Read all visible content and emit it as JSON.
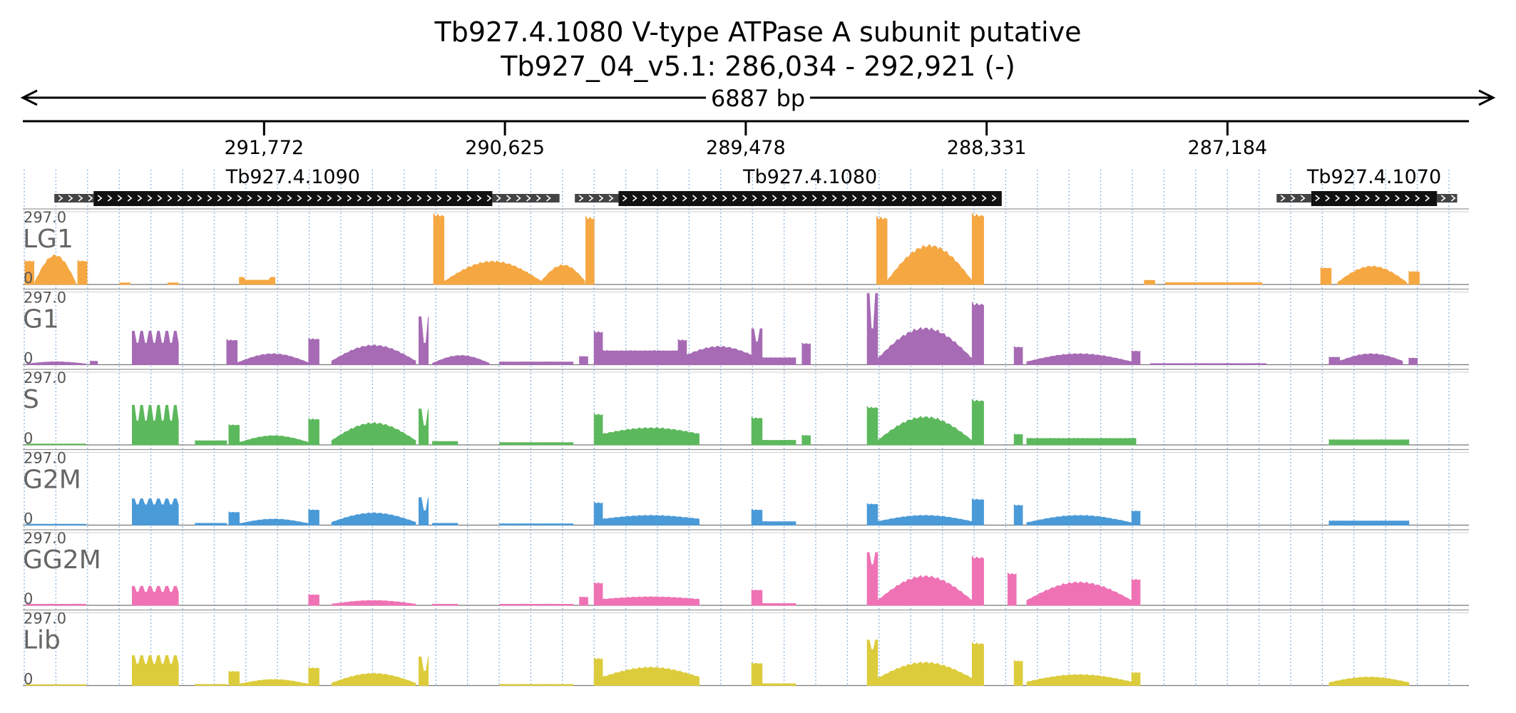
{
  "title": {
    "line1": "Tb927.4.1080  V-type ATPase  A subunit  putative",
    "line2": "Tb927_04_v5.1: 286,034 - 292,921 (-)"
  },
  "ruler": {
    "span_label": "6887 bp",
    "ticks": [
      "291,772",
      "290,625",
      "289,478",
      "288,331",
      "287,184"
    ]
  },
  "colors": {
    "LG1": "#f5a742",
    "G1": "#a66bb4",
    "S": "#5cb85c",
    "G2M": "#4a9ad8",
    "GG2M": "#ef72b5",
    "Lib": "#dccc3c",
    "gene": "#111111",
    "utr": "#444444",
    "grid": "#8fb6df"
  },
  "chart_data": {
    "type": "area",
    "title": "Tb927.4.1080  V-type ATPase  A subunit  putative",
    "subtitle": "Tb927_04_v5.1: 286,034 - 292,921 (-)",
    "x_axis": {
      "range": [
        292921,
        286034
      ],
      "direction": "reverse strand (-)",
      "tick_values": [
        291772,
        290625,
        289478,
        288331,
        287184
      ],
      "tick_labels": [
        "291,772",
        "290,625",
        "289,478",
        "288,331",
        "287,184"
      ]
    },
    "y_range": [
      0,
      297.0
    ],
    "genes": [
      {
        "name": "Tb927.4.1090",
        "utr5": [
          292771,
          292584
        ],
        "cds": [
          292584,
          290685
        ],
        "utr3": [
          290685,
          290365
        ]
      },
      {
        "name": "Tb927.4.1080",
        "utr5": [
          290292,
          290084
        ],
        "cds": [
          290084,
          288259
        ],
        "utr3": []
      },
      {
        "name": "Tb927.4.1070",
        "utr5": [
          286950,
          286785
        ],
        "cds": [
          286785,
          286186
        ],
        "utr3": [
          286186,
          286090
        ]
      }
    ],
    "tracks": [
      {
        "name": "LG1",
        "ymax": 297.0,
        "segments": [
          {
            "from": 292911,
            "to": 292868,
            "shape": "flat",
            "peak": 100
          },
          {
            "from": 292864,
            "to": 292670,
            "shape": "hump",
            "peak": 120,
            "base": 10
          },
          {
            "from": 292660,
            "to": 292615,
            "shape": "flat",
            "peak": 100
          },
          {
            "from": 292460,
            "to": 292410,
            "shape": "flat",
            "peak": 7
          },
          {
            "from": 292230,
            "to": 292180,
            "shape": "flat",
            "peak": 7
          },
          {
            "from": 291890,
            "to": 291720,
            "shape": "edge",
            "peak": 30,
            "base": 18
          },
          {
            "from": 290965,
            "to": 290915,
            "shape": "flat",
            "peak": 297
          },
          {
            "from": 290915,
            "to": 290450,
            "shape": "hump",
            "peak": 95,
            "base": 12
          },
          {
            "from": 290450,
            "to": 290245,
            "shape": "hump",
            "peak": 80,
            "base": 15
          },
          {
            "from": 290240,
            "to": 290200,
            "shape": "flat",
            "peak": 285
          },
          {
            "from": 288855,
            "to": 288805,
            "shape": "flat",
            "peak": 285
          },
          {
            "from": 288805,
            "to": 288400,
            "shape": "hump",
            "peak": 160,
            "base": 15
          },
          {
            "from": 288400,
            "to": 288345,
            "shape": "flat",
            "peak": 297
          },
          {
            "from": 287580,
            "to": 287530,
            "shape": "flat",
            "peak": 18
          },
          {
            "from": 287480,
            "to": 287020,
            "shape": "flat",
            "peak": 8
          },
          {
            "from": 286740,
            "to": 286690,
            "shape": "flat",
            "peak": 70
          },
          {
            "from": 286660,
            "to": 286330,
            "shape": "hump",
            "peak": 75,
            "base": 8
          },
          {
            "from": 286320,
            "to": 286270,
            "shape": "flat",
            "peak": 55
          }
        ]
      },
      {
        "name": "G1",
        "ymax": 297.0,
        "segments": [
          {
            "from": 292905,
            "to": 292620,
            "shape": "hump",
            "peak": 12,
            "base": 3
          },
          {
            "from": 292600,
            "to": 292565,
            "shape": "flat",
            "peak": 15
          },
          {
            "from": 292400,
            "to": 292180,
            "shape": "steps",
            "peak": 140,
            "base": 90
          },
          {
            "from": 291950,
            "to": 291900,
            "shape": "flat",
            "peak": 105
          },
          {
            "from": 291900,
            "to": 291560,
            "shape": "hump",
            "peak": 45,
            "base": 8
          },
          {
            "from": 291560,
            "to": 291510,
            "shape": "flat",
            "peak": 110
          },
          {
            "from": 291450,
            "to": 291050,
            "shape": "hump",
            "peak": 80,
            "base": 15
          },
          {
            "from": 291035,
            "to": 290990,
            "shape": "steps",
            "peak": 200,
            "base": 90
          },
          {
            "from": 290970,
            "to": 290700,
            "shape": "hump",
            "peak": 38,
            "base": 6
          },
          {
            "from": 290650,
            "to": 290300,
            "shape": "flat",
            "peak": 12
          },
          {
            "from": 290270,
            "to": 290230,
            "shape": "flat",
            "peak": 35
          },
          {
            "from": 290200,
            "to": 290160,
            "shape": "flat",
            "peak": 140
          },
          {
            "from": 290160,
            "to": 289800,
            "shape": "flat",
            "peak": 60
          },
          {
            "from": 289800,
            "to": 289760,
            "shape": "flat",
            "peak": 105
          },
          {
            "from": 289760,
            "to": 289450,
            "shape": "hump",
            "peak": 75,
            "base": 40
          },
          {
            "from": 289450,
            "to": 289400,
            "shape": "steps",
            "peak": 150,
            "base": 95
          },
          {
            "from": 289400,
            "to": 289240,
            "shape": "flat",
            "peak": 30
          },
          {
            "from": 289210,
            "to": 289170,
            "shape": "flat",
            "peak": 90
          },
          {
            "from": 288900,
            "to": 288850,
            "shape": "steps",
            "peak": 297,
            "base": 150
          },
          {
            "from": 288850,
            "to": 288400,
            "shape": "hump",
            "peak": 150,
            "base": 25
          },
          {
            "from": 288400,
            "to": 288345,
            "shape": "flat",
            "peak": 260
          },
          {
            "from": 288200,
            "to": 288160,
            "shape": "flat",
            "peak": 75
          },
          {
            "from": 288140,
            "to": 287640,
            "shape": "hump",
            "peak": 45,
            "base": 12
          },
          {
            "from": 287640,
            "to": 287600,
            "shape": "flat",
            "peak": 58
          },
          {
            "from": 287550,
            "to": 287000,
            "shape": "flat",
            "peak": 5
          },
          {
            "from": 286700,
            "to": 286650,
            "shape": "flat",
            "peak": 32
          },
          {
            "from": 286650,
            "to": 286350,
            "shape": "hump",
            "peak": 45,
            "base": 15
          },
          {
            "from": 286320,
            "to": 286280,
            "shape": "flat",
            "peak": 28
          }
        ]
      },
      {
        "name": "S",
        "ymax": 297.0,
        "segments": [
          {
            "from": 292905,
            "to": 292620,
            "shape": "flat",
            "peak": 4
          },
          {
            "from": 292400,
            "to": 292180,
            "shape": "steps",
            "peak": 165,
            "base": 100
          },
          {
            "from": 292100,
            "to": 291950,
            "shape": "flat",
            "peak": 18
          },
          {
            "from": 291940,
            "to": 291890,
            "shape": "flat",
            "peak": 85
          },
          {
            "from": 291890,
            "to": 291560,
            "shape": "hump",
            "peak": 38,
            "base": 10
          },
          {
            "from": 291560,
            "to": 291510,
            "shape": "flat",
            "peak": 110
          },
          {
            "from": 291450,
            "to": 291050,
            "shape": "hump",
            "peak": 90,
            "base": 18
          },
          {
            "from": 291035,
            "to": 290990,
            "shape": "steps",
            "peak": 150,
            "base": 80
          },
          {
            "from": 290970,
            "to": 290850,
            "shape": "flat",
            "peak": 15
          },
          {
            "from": 290650,
            "to": 290300,
            "shape": "flat",
            "peak": 10
          },
          {
            "from": 290200,
            "to": 290160,
            "shape": "flat",
            "peak": 130
          },
          {
            "from": 290160,
            "to": 289700,
            "shape": "hump",
            "peak": 70,
            "base": 45
          },
          {
            "from": 289450,
            "to": 289400,
            "shape": "flat",
            "peak": 115
          },
          {
            "from": 289400,
            "to": 289240,
            "shape": "flat",
            "peak": 20
          },
          {
            "from": 289210,
            "to": 289170,
            "shape": "flat",
            "peak": 40
          },
          {
            "from": 288900,
            "to": 288850,
            "shape": "flat",
            "peak": 160
          },
          {
            "from": 288850,
            "to": 288400,
            "shape": "hump",
            "peak": 115,
            "base": 18
          },
          {
            "from": 288400,
            "to": 288345,
            "shape": "flat",
            "peak": 190
          },
          {
            "from": 288200,
            "to": 288160,
            "shape": "flat",
            "peak": 45
          },
          {
            "from": 288140,
            "to": 287620,
            "shape": "flat",
            "peak": 28
          },
          {
            "from": 286700,
            "to": 286320,
            "shape": "flat",
            "peak": 22
          }
        ]
      },
      {
        "name": "G2M",
        "ymax": 297.0,
        "segments": [
          {
            "from": 292905,
            "to": 292620,
            "shape": "flat",
            "peak": 4
          },
          {
            "from": 292400,
            "to": 292180,
            "shape": "steps",
            "peak": 110,
            "base": 85
          },
          {
            "from": 292100,
            "to": 291950,
            "shape": "flat",
            "peak": 8
          },
          {
            "from": 291940,
            "to": 291890,
            "shape": "flat",
            "peak": 55
          },
          {
            "from": 291890,
            "to": 291560,
            "shape": "hump",
            "peak": 25,
            "base": 6
          },
          {
            "from": 291560,
            "to": 291510,
            "shape": "flat",
            "peak": 65
          },
          {
            "from": 291450,
            "to": 291050,
            "shape": "hump",
            "peak": 50,
            "base": 12
          },
          {
            "from": 291035,
            "to": 290990,
            "shape": "steps",
            "peak": 115,
            "base": 60
          },
          {
            "from": 290970,
            "to": 290850,
            "shape": "flat",
            "peak": 8
          },
          {
            "from": 290650,
            "to": 290300,
            "shape": "flat",
            "peak": 6
          },
          {
            "from": 290200,
            "to": 290160,
            "shape": "flat",
            "peak": 95
          },
          {
            "from": 290160,
            "to": 289700,
            "shape": "hump",
            "peak": 40,
            "base": 25
          },
          {
            "from": 289450,
            "to": 289400,
            "shape": "flat",
            "peak": 65
          },
          {
            "from": 289400,
            "to": 289240,
            "shape": "flat",
            "peak": 15
          },
          {
            "from": 288900,
            "to": 288850,
            "shape": "flat",
            "peak": 90
          },
          {
            "from": 288850,
            "to": 288400,
            "shape": "hump",
            "peak": 40,
            "base": 15
          },
          {
            "from": 288400,
            "to": 288345,
            "shape": "flat",
            "peak": 110
          },
          {
            "from": 288200,
            "to": 288160,
            "shape": "flat",
            "peak": 85
          },
          {
            "from": 288140,
            "to": 287640,
            "shape": "hump",
            "peak": 40,
            "base": 10
          },
          {
            "from": 287640,
            "to": 287600,
            "shape": "flat",
            "peak": 60
          },
          {
            "from": 286700,
            "to": 286320,
            "shape": "flat",
            "peak": 18
          }
        ]
      },
      {
        "name": "GG2M",
        "ymax": 297.0,
        "segments": [
          {
            "from": 292905,
            "to": 292620,
            "shape": "flat",
            "peak": 5
          },
          {
            "from": 292400,
            "to": 292180,
            "shape": "steps",
            "peak": 80,
            "base": 55
          },
          {
            "from": 291560,
            "to": 291510,
            "shape": "flat",
            "peak": 45
          },
          {
            "from": 291450,
            "to": 291050,
            "shape": "hump",
            "peak": 20,
            "base": 5
          },
          {
            "from": 290970,
            "to": 290850,
            "shape": "flat",
            "peak": 5
          },
          {
            "from": 290650,
            "to": 290300,
            "shape": "flat",
            "peak": 5
          },
          {
            "from": 290270,
            "to": 290230,
            "shape": "flat",
            "peak": 35
          },
          {
            "from": 290200,
            "to": 290160,
            "shape": "flat",
            "peak": 95
          },
          {
            "from": 290160,
            "to": 289700,
            "shape": "hump",
            "peak": 35,
            "base": 25
          },
          {
            "from": 289450,
            "to": 289400,
            "shape": "flat",
            "peak": 65
          },
          {
            "from": 289400,
            "to": 289240,
            "shape": "flat",
            "peak": 8
          },
          {
            "from": 288900,
            "to": 288850,
            "shape": "steps",
            "peak": 220,
            "base": 170
          },
          {
            "from": 288850,
            "to": 288400,
            "shape": "hump",
            "peak": 120,
            "base": 20
          },
          {
            "from": 288400,
            "to": 288345,
            "shape": "flat",
            "peak": 205
          },
          {
            "from": 288230,
            "to": 288190,
            "shape": "flat",
            "peak": 135
          },
          {
            "from": 288140,
            "to": 287640,
            "shape": "hump",
            "peak": 95,
            "base": 20
          },
          {
            "from": 287640,
            "to": 287600,
            "shape": "flat",
            "peak": 110
          }
        ]
      },
      {
        "name": "Lib",
        "ymax": 297.0,
        "segments": [
          {
            "from": 292905,
            "to": 292620,
            "shape": "flat",
            "peak": 4
          },
          {
            "from": 292400,
            "to": 292180,
            "shape": "steps",
            "peak": 125,
            "base": 90
          },
          {
            "from": 292100,
            "to": 291950,
            "shape": "flat",
            "peak": 5
          },
          {
            "from": 291940,
            "to": 291890,
            "shape": "flat",
            "peak": 60
          },
          {
            "from": 291890,
            "to": 291560,
            "shape": "hump",
            "peak": 25,
            "base": 6
          },
          {
            "from": 291560,
            "to": 291510,
            "shape": "flat",
            "peak": 75
          },
          {
            "from": 291450,
            "to": 291050,
            "shape": "hump",
            "peak": 50,
            "base": 10
          },
          {
            "from": 291035,
            "to": 290990,
            "shape": "steps",
            "peak": 120,
            "base": 60
          },
          {
            "from": 290650,
            "to": 290300,
            "shape": "flat",
            "peak": 5
          },
          {
            "from": 290200,
            "to": 290160,
            "shape": "flat",
            "peak": 115
          },
          {
            "from": 290160,
            "to": 289700,
            "shape": "hump",
            "peak": 75,
            "base": 35
          },
          {
            "from": 289450,
            "to": 289400,
            "shape": "flat",
            "peak": 95
          },
          {
            "from": 289400,
            "to": 289240,
            "shape": "flat",
            "peak": 8
          },
          {
            "from": 288900,
            "to": 288850,
            "shape": "steps",
            "peak": 190,
            "base": 150
          },
          {
            "from": 288850,
            "to": 288400,
            "shape": "hump",
            "peak": 95,
            "base": 30
          },
          {
            "from": 288400,
            "to": 288345,
            "shape": "flat",
            "peak": 180
          },
          {
            "from": 288200,
            "to": 288160,
            "shape": "flat",
            "peak": 105
          },
          {
            "from": 288140,
            "to": 287640,
            "shape": "hump",
            "peak": 45,
            "base": 15
          },
          {
            "from": 287640,
            "to": 287600,
            "shape": "flat",
            "peak": 55
          },
          {
            "from": 286700,
            "to": 286320,
            "shape": "hump",
            "peak": 35,
            "base": 12
          }
        ]
      }
    ]
  }
}
